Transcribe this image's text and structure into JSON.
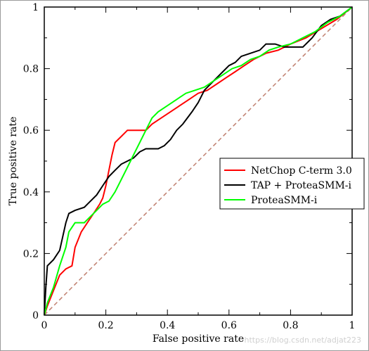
{
  "chart_data": {
    "type": "line",
    "xlabel": "False positive rate",
    "ylabel": "True positive rate",
    "xlim": [
      0,
      1
    ],
    "ylim": [
      0,
      1
    ],
    "x_ticks": [
      "0",
      "0.2",
      "0.4",
      "0.6",
      "0.8",
      "1"
    ],
    "y_ticks": [
      "0",
      "0.2",
      "0.4",
      "0.6",
      "0.8",
      "1"
    ],
    "x_tick_values": [
      0,
      0.2,
      0.4,
      0.6,
      0.8,
      1
    ],
    "y_tick_values": [
      0,
      0.2,
      0.4,
      0.6,
      0.8,
      1
    ],
    "grid": false,
    "legend_position": "right",
    "series": [
      {
        "name": "NetChop C-term 3.0",
        "color": "#ff0000",
        "points": [
          [
            0,
            0
          ],
          [
            0.01,
            0.03
          ],
          [
            0.03,
            0.08
          ],
          [
            0.05,
            0.13
          ],
          [
            0.07,
            0.15
          ],
          [
            0.09,
            0.16
          ],
          [
            0.1,
            0.22
          ],
          [
            0.12,
            0.27
          ],
          [
            0.14,
            0.3
          ],
          [
            0.16,
            0.33
          ],
          [
            0.18,
            0.36
          ],
          [
            0.19,
            0.38
          ],
          [
            0.2,
            0.42
          ],
          [
            0.21,
            0.47
          ],
          [
            0.22,
            0.52
          ],
          [
            0.23,
            0.56
          ],
          [
            0.25,
            0.58
          ],
          [
            0.27,
            0.6
          ],
          [
            0.3,
            0.6
          ],
          [
            0.33,
            0.6
          ],
          [
            0.35,
            0.62
          ],
          [
            0.38,
            0.64
          ],
          [
            0.41,
            0.66
          ],
          [
            0.44,
            0.68
          ],
          [
            0.47,
            0.7
          ],
          [
            0.5,
            0.72
          ],
          [
            0.53,
            0.73
          ],
          [
            0.56,
            0.75
          ],
          [
            0.59,
            0.77
          ],
          [
            0.62,
            0.79
          ],
          [
            0.65,
            0.81
          ],
          [
            0.68,
            0.83
          ],
          [
            0.72,
            0.85
          ],
          [
            0.76,
            0.86
          ],
          [
            0.8,
            0.88
          ],
          [
            0.85,
            0.9
          ],
          [
            0.9,
            0.93
          ],
          [
            0.95,
            0.96
          ],
          [
            1.0,
            1.0
          ]
        ]
      },
      {
        "name": "TAP + ProteaSMM-i",
        "color": "#000000",
        "points": [
          [
            0,
            0
          ],
          [
            0.005,
            0.09
          ],
          [
            0.01,
            0.16
          ],
          [
            0.03,
            0.18
          ],
          [
            0.05,
            0.21
          ],
          [
            0.07,
            0.3
          ],
          [
            0.08,
            0.33
          ],
          [
            0.1,
            0.34
          ],
          [
            0.13,
            0.35
          ],
          [
            0.15,
            0.37
          ],
          [
            0.17,
            0.39
          ],
          [
            0.19,
            0.42
          ],
          [
            0.21,
            0.45
          ],
          [
            0.23,
            0.47
          ],
          [
            0.25,
            0.49
          ],
          [
            0.27,
            0.5
          ],
          [
            0.29,
            0.51
          ],
          [
            0.31,
            0.53
          ],
          [
            0.33,
            0.54
          ],
          [
            0.35,
            0.54
          ],
          [
            0.37,
            0.54
          ],
          [
            0.39,
            0.55
          ],
          [
            0.41,
            0.57
          ],
          [
            0.43,
            0.6
          ],
          [
            0.45,
            0.62
          ],
          [
            0.48,
            0.66
          ],
          [
            0.5,
            0.69
          ],
          [
            0.52,
            0.73
          ],
          [
            0.54,
            0.75
          ],
          [
            0.56,
            0.77
          ],
          [
            0.58,
            0.79
          ],
          [
            0.6,
            0.81
          ],
          [
            0.62,
            0.82
          ],
          [
            0.64,
            0.84
          ],
          [
            0.67,
            0.85
          ],
          [
            0.7,
            0.86
          ],
          [
            0.72,
            0.88
          ],
          [
            0.75,
            0.88
          ],
          [
            0.78,
            0.87
          ],
          [
            0.8,
            0.87
          ],
          [
            0.84,
            0.87
          ],
          [
            0.87,
            0.9
          ],
          [
            0.9,
            0.94
          ],
          [
            0.93,
            0.96
          ],
          [
            0.96,
            0.97
          ],
          [
            1.0,
            1.0
          ]
        ]
      },
      {
        "name": "ProteaSMM-i",
        "color": "#00ff00",
        "points": [
          [
            0,
            0
          ],
          [
            0.01,
            0.04
          ],
          [
            0.03,
            0.09
          ],
          [
            0.05,
            0.16
          ],
          [
            0.07,
            0.22
          ],
          [
            0.08,
            0.27
          ],
          [
            0.1,
            0.3
          ],
          [
            0.12,
            0.3
          ],
          [
            0.13,
            0.3
          ],
          [
            0.15,
            0.32
          ],
          [
            0.17,
            0.34
          ],
          [
            0.19,
            0.36
          ],
          [
            0.21,
            0.37
          ],
          [
            0.23,
            0.4
          ],
          [
            0.25,
            0.44
          ],
          [
            0.27,
            0.48
          ],
          [
            0.29,
            0.52
          ],
          [
            0.31,
            0.56
          ],
          [
            0.33,
            0.6
          ],
          [
            0.35,
            0.64
          ],
          [
            0.37,
            0.66
          ],
          [
            0.4,
            0.68
          ],
          [
            0.43,
            0.7
          ],
          [
            0.46,
            0.72
          ],
          [
            0.49,
            0.73
          ],
          [
            0.52,
            0.74
          ],
          [
            0.55,
            0.76
          ],
          [
            0.58,
            0.78
          ],
          [
            0.61,
            0.8
          ],
          [
            0.64,
            0.81
          ],
          [
            0.67,
            0.83
          ],
          [
            0.7,
            0.84
          ],
          [
            0.73,
            0.86
          ],
          [
            0.76,
            0.87
          ],
          [
            0.8,
            0.88
          ],
          [
            0.84,
            0.9
          ],
          [
            0.88,
            0.92
          ],
          [
            0.92,
            0.95
          ],
          [
            0.96,
            0.97
          ],
          [
            1.0,
            1.0
          ]
        ]
      },
      {
        "color": "#c08070",
        "style": "dashed",
        "points": [
          [
            0,
            0
          ],
          [
            1,
            1
          ]
        ]
      }
    ]
  },
  "watermark": "https://blog.csdn.net/adjat223"
}
